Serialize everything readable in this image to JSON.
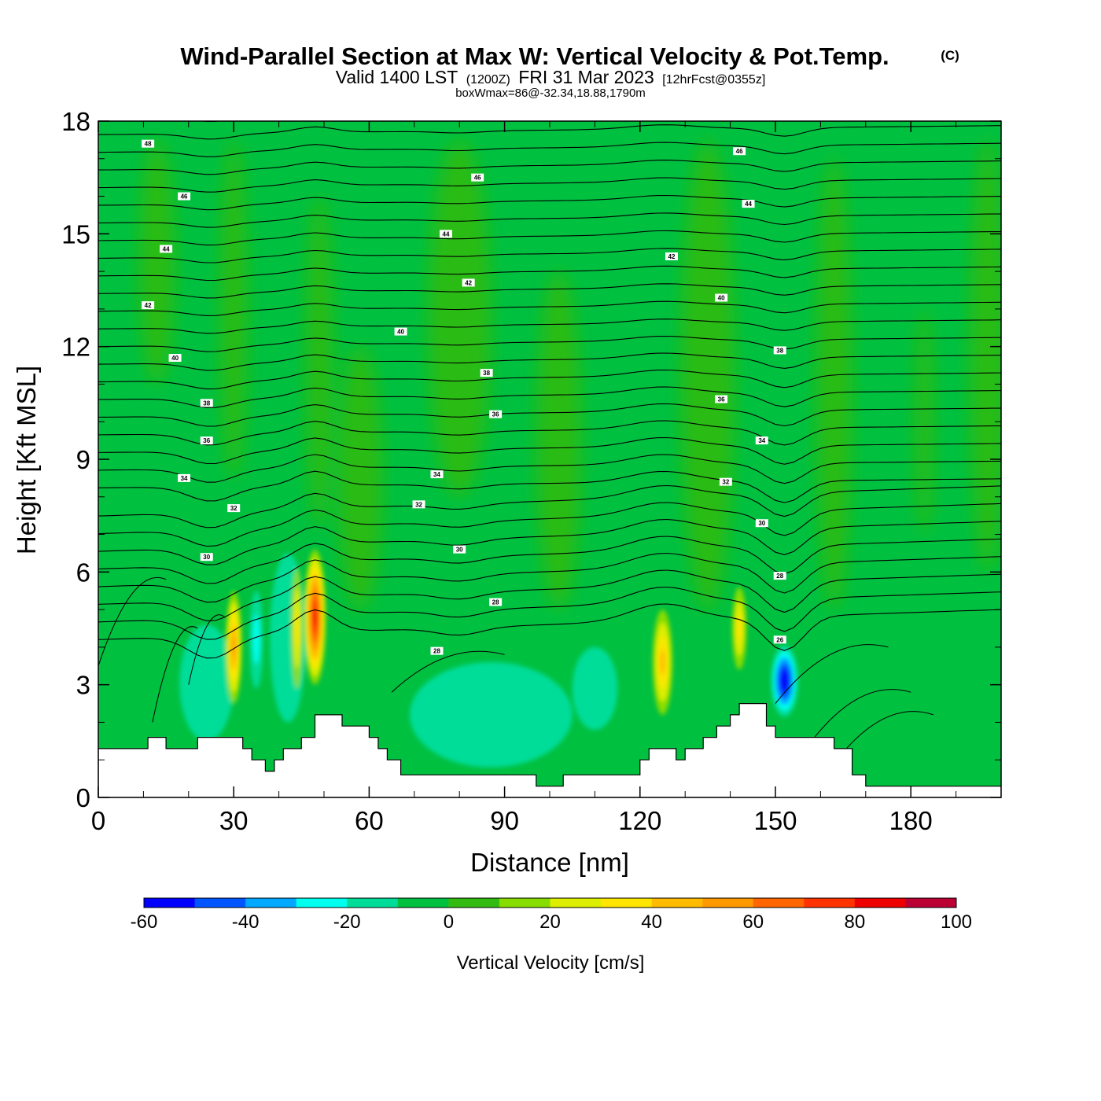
{
  "chart_data": {
    "type": "heatmap",
    "title": "Wind-Parallel Section at Max W: Vertical Velocity & Pot.Temp.",
    "title_mark": "(C)",
    "subtitle_main": "Valid 1400 LST",
    "subtitle_utc": "(1200Z)",
    "subtitle_date": "FRI 31 Mar 2023",
    "subtitle_fcst": "[12hrFcst@0355z]",
    "subtitle2": "boxWmax=86@-32.34,18.88,1790m",
    "xlabel": "Distance [nm]",
    "ylabel": "Height [Kft MSL]",
    "xlim": [
      0,
      200
    ],
    "ylim": [
      0,
      18
    ],
    "xticks": [
      0,
      30,
      60,
      90,
      120,
      150,
      180
    ],
    "yticks": [
      0,
      3,
      6,
      9,
      12,
      15,
      18
    ],
    "colorbar": {
      "label": "Vertical Velocity [cm/s]",
      "min": -60,
      "max": 100,
      "step": 10,
      "tick_labels": [
        "-60",
        "-40",
        "-20",
        "0",
        "20",
        "40",
        "60",
        "80",
        "100"
      ],
      "colors": [
        "#0000ff",
        "#0055ff",
        "#00a8ff",
        "#00ffee",
        "#00dd99",
        "#00c040",
        "#33bb11",
        "#88dd00",
        "#ddee00",
        "#ffe500",
        "#ffbb00",
        "#ff9900",
        "#ff6600",
        "#ff3300",
        "#ee0000",
        "#bb0033"
      ]
    },
    "updrafts": [
      {
        "x": 30,
        "z": 4,
        "max_w": 55
      },
      {
        "x": 44,
        "z": 4.5,
        "max_w": 30
      },
      {
        "x": 48,
        "z": 5,
        "max_w": 86
      },
      {
        "x": 125,
        "z": 3.5,
        "max_w": 40
      },
      {
        "x": 142,
        "z": 4.5,
        "max_w": 35
      }
    ],
    "downdrafts": [
      {
        "x": 35,
        "z": 4,
        "min_w": -25
      },
      {
        "x": 152,
        "z": 3,
        "min_w": -60
      },
      {
        "x": 110,
        "z": 3,
        "min_w": -15
      }
    ],
    "terrain_kft": [
      [
        0,
        1.3
      ],
      [
        11,
        1.3
      ],
      [
        11,
        1.6
      ],
      [
        15,
        1.6
      ],
      [
        15,
        1.3
      ],
      [
        22,
        1.3
      ],
      [
        22,
        1.6
      ],
      [
        32,
        1.6
      ],
      [
        32,
        1.3
      ],
      [
        34,
        1.3
      ],
      [
        34,
        1.0
      ],
      [
        37,
        1.0
      ],
      [
        37,
        0.7
      ],
      [
        39,
        0.7
      ],
      [
        39,
        1.0
      ],
      [
        41,
        1.0
      ],
      [
        41,
        1.3
      ],
      [
        45,
        1.3
      ],
      [
        45,
        1.6
      ],
      [
        48,
        1.6
      ],
      [
        48,
        2.2
      ],
      [
        54,
        2.2
      ],
      [
        54,
        1.9
      ],
      [
        60,
        1.9
      ],
      [
        60,
        1.6
      ],
      [
        62,
        1.6
      ],
      [
        62,
        1.3
      ],
      [
        64,
        1.3
      ],
      [
        64,
        1.0
      ],
      [
        67,
        1.0
      ],
      [
        67,
        0.6
      ],
      [
        97,
        0.6
      ],
      [
        97,
        0.3
      ],
      [
        103,
        0.3
      ],
      [
        103,
        0.6
      ],
      [
        120,
        0.6
      ],
      [
        120,
        1.0
      ],
      [
        122,
        1.0
      ],
      [
        122,
        1.3
      ],
      [
        128,
        1.3
      ],
      [
        128,
        1.0
      ],
      [
        130,
        1.0
      ],
      [
        130,
        1.3
      ],
      [
        134,
        1.3
      ],
      [
        134,
        1.6
      ],
      [
        137,
        1.6
      ],
      [
        137,
        1.9
      ],
      [
        140,
        1.9
      ],
      [
        140,
        2.2
      ],
      [
        142,
        2.2
      ],
      [
        142,
        2.5
      ],
      [
        148,
        2.5
      ],
      [
        148,
        1.9
      ],
      [
        150,
        1.9
      ],
      [
        150,
        1.6
      ],
      [
        163,
        1.6
      ],
      [
        163,
        1.3
      ],
      [
        167,
        1.3
      ],
      [
        167,
        0.6
      ],
      [
        170,
        0.6
      ],
      [
        170,
        0.3
      ],
      [
        200,
        0.3
      ]
    ],
    "theta_labels": [
      {
        "x": 11,
        "z": 17.4,
        "text": "48"
      },
      {
        "x": 19,
        "z": 16.0,
        "text": "46"
      },
      {
        "x": 15,
        "z": 14.6,
        "text": "44"
      },
      {
        "x": 11,
        "z": 13.1,
        "text": "42"
      },
      {
        "x": 17,
        "z": 11.7,
        "text": "40"
      },
      {
        "x": 24,
        "z": 10.5,
        "text": "38"
      },
      {
        "x": 24,
        "z": 9.5,
        "text": "36"
      },
      {
        "x": 19,
        "z": 8.5,
        "text": "34"
      },
      {
        "x": 30,
        "z": 7.7,
        "text": "32"
      },
      {
        "x": 24,
        "z": 6.4,
        "text": "30"
      },
      {
        "x": 84,
        "z": 16.5,
        "text": "46"
      },
      {
        "x": 77,
        "z": 15.0,
        "text": "44"
      },
      {
        "x": 82,
        "z": 13.7,
        "text": "42"
      },
      {
        "x": 67,
        "z": 12.4,
        "text": "40"
      },
      {
        "x": 86,
        "z": 11.3,
        "text": "38"
      },
      {
        "x": 88,
        "z": 10.2,
        "text": "36"
      },
      {
        "x": 75,
        "z": 8.6,
        "text": "34"
      },
      {
        "x": 71,
        "z": 7.8,
        "text": "32"
      },
      {
        "x": 80,
        "z": 6.6,
        "text": "30"
      },
      {
        "x": 88,
        "z": 5.2,
        "text": "28"
      },
      {
        "x": 75,
        "z": 3.9,
        "text": "28"
      },
      {
        "x": 142,
        "z": 17.2,
        "text": "46"
      },
      {
        "x": 144,
        "z": 15.8,
        "text": "44"
      },
      {
        "x": 127,
        "z": 14.4,
        "text": "42"
      },
      {
        "x": 138,
        "z": 13.3,
        "text": "40"
      },
      {
        "x": 151,
        "z": 11.9,
        "text": "38"
      },
      {
        "x": 138,
        "z": 10.6,
        "text": "36"
      },
      {
        "x": 147,
        "z": 9.5,
        "text": "34"
      },
      {
        "x": 139,
        "z": 8.4,
        "text": "32"
      },
      {
        "x": 147,
        "z": 7.3,
        "text": "30"
      },
      {
        "x": 151,
        "z": 5.9,
        "text": "28"
      },
      {
        "x": 151,
        "z": 4.2,
        "text": "26"
      }
    ]
  }
}
